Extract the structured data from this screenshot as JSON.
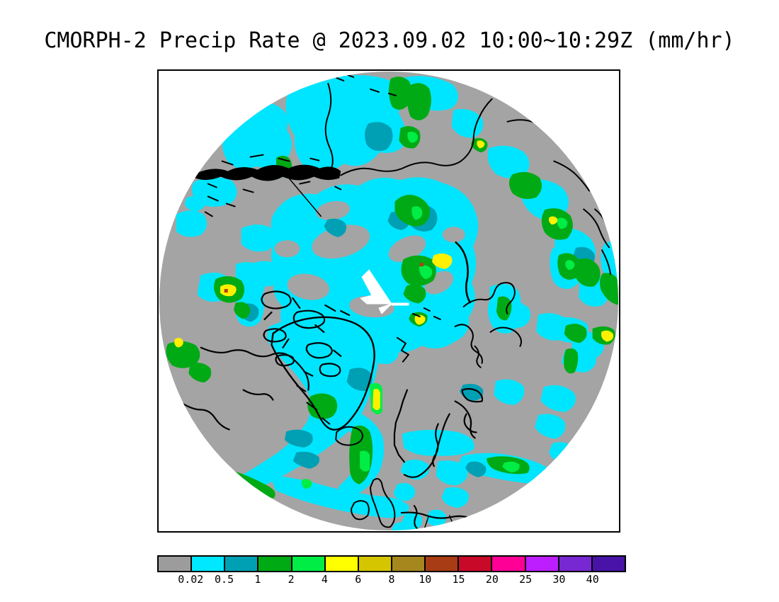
{
  "title": "CMORPH-2 Precip Rate @ 2023.09.02 10:00~10:29Z (mm/hr)",
  "colorbar": {
    "labels": [
      "0.02",
      "0.5",
      "1",
      "2",
      "4",
      "6",
      "8",
      "10",
      "15",
      "20",
      "25",
      "30",
      "40"
    ],
    "colors": [
      "#9C9C9C",
      "#00E8FF",
      "#00A0B4",
      "#00AA14",
      "#00ED46",
      "#FFFF00",
      "#D5C500",
      "#A5871E",
      "#A83C14",
      "#C80A28",
      "#FF0096",
      "#BC1EFF",
      "#7828D2",
      "#4813A6"
    ]
  },
  "map": {
    "background_color": "#A4A4A4",
    "light_precip_color": "#00E5FF",
    "moderate_precip_color": "#00A0B4",
    "rain_colors": [
      "#00AA14",
      "#00ED46",
      "#FFF000",
      "#B43C14"
    ],
    "coastline_color": "#000000",
    "missing_data_color": "#FFFFFF"
  }
}
